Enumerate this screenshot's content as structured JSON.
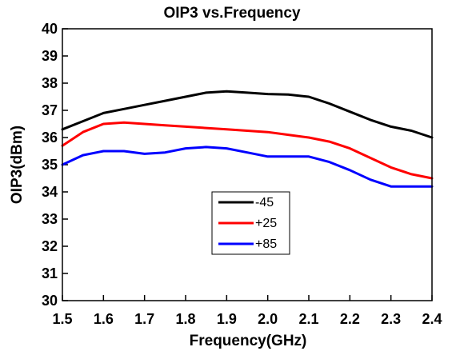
{
  "chart_data": {
    "type": "line",
    "title": "OIP3 vs.Frequency",
    "xlabel": "Frequency(GHz)",
    "ylabel": "OIP3(dBm)",
    "x": [
      1.5,
      1.55,
      1.6,
      1.65,
      1.7,
      1.75,
      1.8,
      1.85,
      1.9,
      1.95,
      2.0,
      2.05,
      2.1,
      2.15,
      2.2,
      2.25,
      2.3,
      2.35,
      2.4
    ],
    "series": [
      {
        "name": "-45",
        "color": "#000000",
        "values": [
          36.3,
          36.6,
          36.9,
          37.05,
          37.2,
          37.35,
          37.5,
          37.65,
          37.7,
          37.65,
          37.6,
          37.58,
          37.5,
          37.25,
          36.95,
          36.65,
          36.4,
          36.25,
          36.0
        ]
      },
      {
        "name": "+25",
        "color": "#ff0000",
        "values": [
          35.7,
          36.2,
          36.5,
          36.55,
          36.5,
          36.45,
          36.4,
          36.35,
          36.3,
          36.25,
          36.2,
          36.1,
          36.0,
          35.85,
          35.6,
          35.25,
          34.9,
          34.65,
          34.5
        ]
      },
      {
        "name": "+85",
        "color": "#0000ff",
        "values": [
          35.0,
          35.35,
          35.5,
          35.5,
          35.4,
          35.45,
          35.6,
          35.65,
          35.6,
          35.45,
          35.3,
          35.3,
          35.3,
          35.1,
          34.8,
          34.45,
          34.2,
          34.2,
          34.2
        ]
      }
    ],
    "xlim": [
      1.5,
      2.4
    ],
    "xticks": [
      1.5,
      1.6,
      1.7,
      1.8,
      1.9,
      {
        "value": 2,
        "label": "2.0"
      },
      2.1,
      2.2,
      2.3,
      2.4
    ],
    "ylim": [
      30,
      40
    ],
    "yticks": [
      30,
      31,
      32,
      33,
      34,
      35,
      36,
      37,
      38,
      39,
      40
    ],
    "grid": false
  }
}
